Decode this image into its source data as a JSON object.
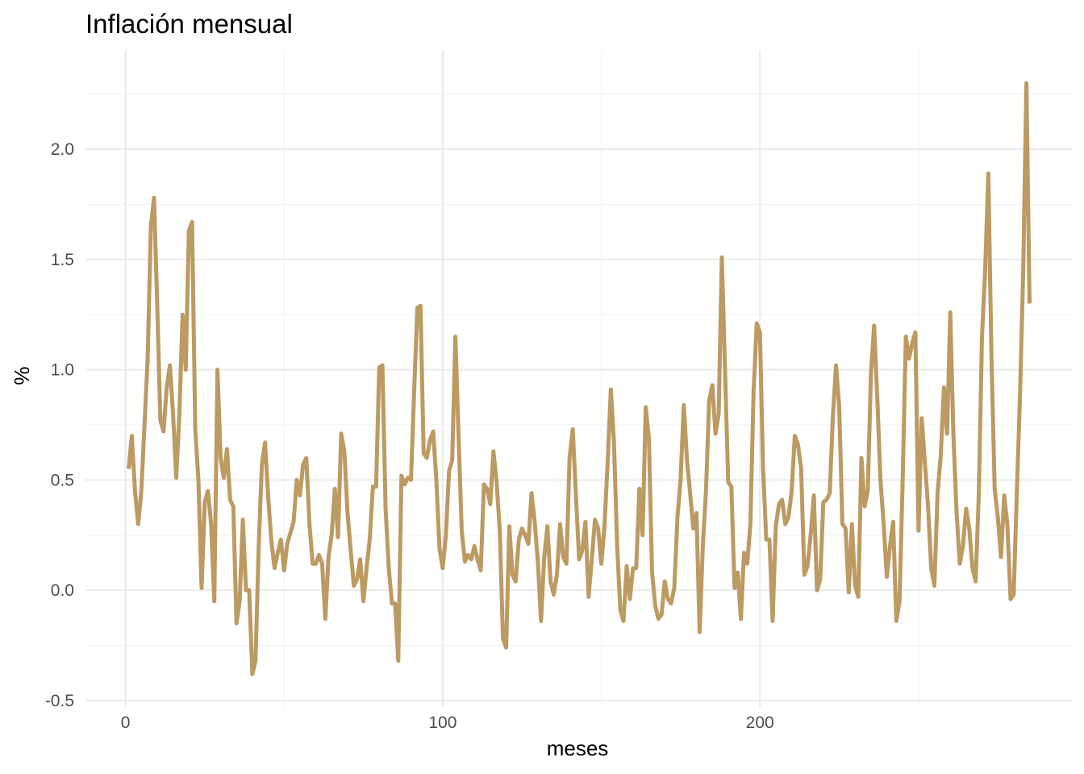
{
  "chart_data": {
    "type": "line",
    "title": "Inflación mensual",
    "xlabel": "meses",
    "ylabel": "%",
    "xlim": [
      -12.6,
      298.6
    ],
    "ylim": [
      -0.53,
      2.45
    ],
    "x_ticks": [
      0,
      100,
      200
    ],
    "y_ticks": [
      -0.5,
      0.0,
      0.5,
      1.0,
      1.5,
      2.0
    ],
    "x_tick_labels": [
      "0",
      "100",
      "200"
    ],
    "y_tick_labels": [
      "-0.5",
      "0.0",
      "0.5",
      "1.0",
      "1.5",
      "2.0"
    ],
    "grid": true,
    "line_color": "#bc9a62",
    "series": [
      {
        "x_start": 1,
        "values": [
          0.55,
          0.7,
          0.45,
          0.3,
          0.45,
          0.75,
          1.05,
          1.65,
          1.78,
          1.3,
          0.77,
          0.72,
          0.92,
          1.02,
          0.8,
          0.51,
          0.8,
          1.25,
          1.0,
          1.63,
          1.67,
          0.73,
          0.5,
          0.01,
          0.4,
          0.45,
          0.3,
          -0.05,
          1.0,
          0.6,
          0.51,
          0.64,
          0.41,
          0.38,
          -0.15,
          -0.05,
          0.32,
          0.0,
          0.0,
          -0.38,
          -0.32,
          0.2,
          0.57,
          0.67,
          0.42,
          0.22,
          0.1,
          0.17,
          0.23,
          0.09,
          0.21,
          0.26,
          0.31,
          0.5,
          0.43,
          0.57,
          0.6,
          0.3,
          0.12,
          0.12,
          0.16,
          0.12,
          -0.13,
          0.15,
          0.25,
          0.46,
          0.24,
          0.71,
          0.63,
          0.35,
          0.18,
          0.02,
          0.05,
          0.14,
          -0.05,
          0.1,
          0.23,
          0.47,
          0.47,
          1.01,
          1.02,
          0.37,
          0.1,
          -0.06,
          -0.06,
          -0.32,
          0.52,
          0.48,
          0.51,
          0.5,
          0.9,
          1.28,
          1.29,
          0.62,
          0.6,
          0.68,
          0.72,
          0.5,
          0.19,
          0.1,
          0.25,
          0.54,
          0.59,
          1.15,
          0.7,
          0.27,
          0.13,
          0.16,
          0.14,
          0.2,
          0.14,
          0.09,
          0.48,
          0.46,
          0.39,
          0.63,
          0.49,
          0.27,
          -0.22,
          -0.26,
          0.29,
          0.07,
          0.04,
          0.23,
          0.28,
          0.25,
          0.21,
          0.44,
          0.31,
          0.13,
          -0.14,
          0.15,
          0.29,
          0.04,
          -0.02,
          0.07,
          0.3,
          0.15,
          0.12,
          0.6,
          0.73,
          0.43,
          0.14,
          0.18,
          0.31,
          -0.03,
          0.14,
          0.32,
          0.28,
          0.12,
          0.29,
          0.58,
          0.91,
          0.67,
          0.2,
          -0.09,
          -0.14,
          0.11,
          -0.04,
          0.1,
          0.1,
          0.46,
          0.25,
          0.83,
          0.69,
          0.08,
          -0.07,
          -0.13,
          -0.11,
          0.04,
          -0.04,
          -0.06,
          0.01,
          0.33,
          0.5,
          0.84,
          0.59,
          0.44,
          0.28,
          0.35,
          -0.19,
          0.2,
          0.45,
          0.86,
          0.93,
          0.71,
          0.8,
          1.51,
          1.0,
          0.49,
          0.47,
          0.01,
          0.08,
          -0.13,
          0.17,
          0.12,
          0.3,
          0.9,
          1.21,
          1.17,
          0.55,
          0.23,
          0.23,
          -0.14,
          0.29,
          0.39,
          0.41,
          0.3,
          0.33,
          0.45,
          0.7,
          0.66,
          0.55,
          0.07,
          0.11,
          0.25,
          0.43,
          0.0,
          0.05,
          0.4,
          0.41,
          0.44,
          0.79,
          1.02,
          0.83,
          0.3,
          0.28,
          -0.01,
          0.3,
          0.02,
          -0.03,
          0.6,
          0.38,
          0.45,
          0.98,
          1.2,
          0.87,
          0.5,
          0.3,
          0.06,
          0.2,
          0.31,
          -0.14,
          -0.05,
          0.5,
          1.15,
          1.05,
          1.12,
          1.17,
          0.27,
          0.78,
          0.58,
          0.38,
          0.1,
          0.02,
          0.44,
          0.61,
          0.92,
          0.71,
          1.26,
          0.7,
          0.35,
          0.12,
          0.2,
          0.37,
          0.28,
          0.1,
          0.04,
          0.44,
          1.15,
          1.45,
          1.89,
          1.05,
          0.46,
          0.33,
          0.15,
          0.43,
          0.3,
          -0.04,
          -0.02,
          0.45,
          0.89,
          1.45,
          2.3,
          1.3
        ]
      }
    ]
  }
}
